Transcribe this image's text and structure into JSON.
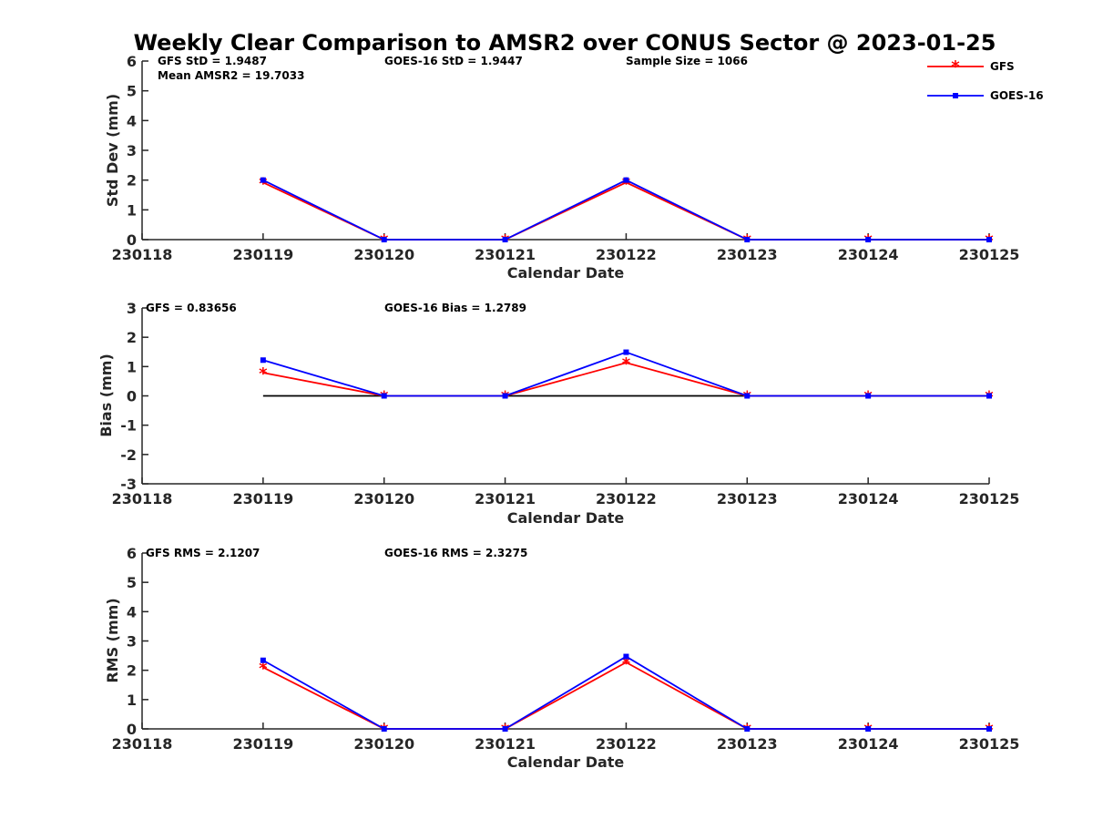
{
  "title": "Weekly Clear Comparison to AMSR2 over CONUS Sector @ 2023-01-25",
  "legend": [
    {
      "label": "GFS",
      "color": "#ff0000",
      "marker": "asterisk"
    },
    {
      "label": "GOES-16",
      "color": "#0000ff",
      "marker": "square"
    }
  ],
  "chart_data": [
    {
      "type": "line",
      "ylabel": "Std Dev (mm)",
      "xlabel": "Calendar Date",
      "ylim": [
        0,
        6
      ],
      "yticks": [
        "0",
        "1",
        "2",
        "3",
        "4",
        "5",
        "6"
      ],
      "categories": [
        "230118",
        "230119",
        "230120",
        "230121",
        "230122",
        "230123",
        "230124",
        "230125"
      ],
      "annotations": [
        "GFS StD = 1.9487",
        "Mean AMSR2 = 19.7033",
        "GOES-16 StD = 1.9447",
        "Sample Size = 1066"
      ],
      "zero_line": false,
      "series": [
        {
          "name": "GFS",
          "color": "#ff0000",
          "values": [
            null,
            1.92,
            0,
            0,
            1.92,
            0,
            0,
            0
          ]
        },
        {
          "name": "GOES-16",
          "color": "#0000ff",
          "values": [
            null,
            2.0,
            0,
            0,
            2.0,
            0,
            0,
            0
          ]
        }
      ]
    },
    {
      "type": "line",
      "ylabel": "Bias (mm)",
      "xlabel": "Calendar Date",
      "ylim": [
        -3,
        3
      ],
      "yticks": [
        "-3",
        "-2",
        "-1",
        "0",
        "1",
        "2",
        "3"
      ],
      "categories": [
        "230118",
        "230119",
        "230120",
        "230121",
        "230122",
        "230123",
        "230124",
        "230125"
      ],
      "annotations": [
        "GFS = 0.83656",
        "GOES-16 Bias  = 1.2789"
      ],
      "zero_line": true,
      "series": [
        {
          "name": "GFS",
          "color": "#ff0000",
          "values": [
            null,
            0.79,
            0,
            0,
            1.13,
            0,
            0,
            0
          ]
        },
        {
          "name": "GOES-16",
          "color": "#0000ff",
          "values": [
            null,
            1.22,
            0,
            0,
            1.49,
            0,
            0,
            0
          ]
        }
      ]
    },
    {
      "type": "line",
      "ylabel": "RMS (mm)",
      "xlabel": "Calendar Date",
      "ylim": [
        0,
        6
      ],
      "yticks": [
        "0",
        "1",
        "2",
        "3",
        "4",
        "5",
        "6"
      ],
      "categories": [
        "230118",
        "230119",
        "230120",
        "230121",
        "230122",
        "230123",
        "230124",
        "230125"
      ],
      "annotations": [
        "GFS RMS = 2.1207",
        "GOES-16 RMS = 2.3275"
      ],
      "zero_line": false,
      "series": [
        {
          "name": "GFS",
          "color": "#ff0000",
          "values": [
            null,
            2.1,
            0,
            0,
            2.27,
            0,
            0,
            0
          ]
        },
        {
          "name": "GOES-16",
          "color": "#0000ff",
          "values": [
            null,
            2.34,
            0,
            0,
            2.47,
            0,
            0,
            0
          ]
        }
      ]
    }
  ]
}
